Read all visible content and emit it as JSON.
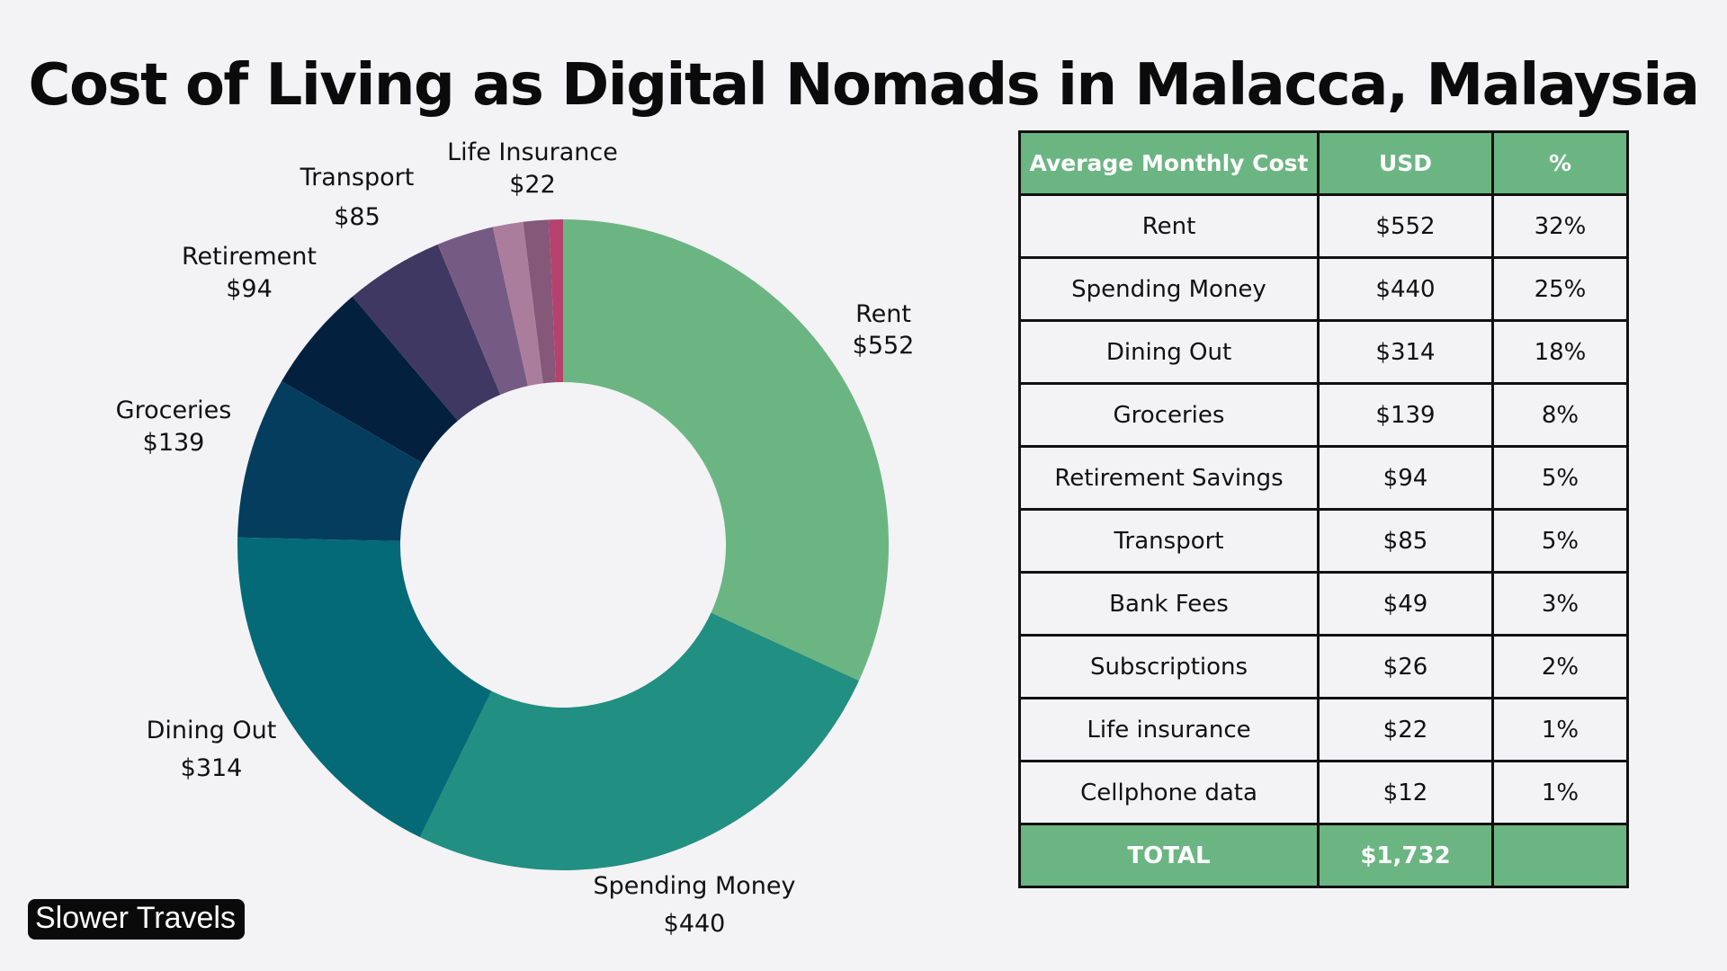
{
  "title": "Cost of Living as Digital Nomads in Malacca, Malaysia",
  "brand": "Slower Travels",
  "chart_data": {
    "type": "pie",
    "donut": true,
    "categories": [
      "Rent",
      "Spending Money",
      "Dining Out",
      "Groceries",
      "Retirement",
      "Transport",
      "Bank Fees",
      "Subscriptions",
      "Life Insurance",
      "Cellphone data"
    ],
    "values": [
      552,
      440,
      314,
      139,
      94,
      85,
      49,
      26,
      22,
      12
    ],
    "value_labels": [
      "$552",
      "$440",
      "$314",
      "$139",
      "$94",
      "$85",
      "",
      "",
      "$22",
      ""
    ],
    "colors": [
      "#6bb582",
      "#218f81",
      "#046a78",
      "#053d5e",
      "#03203f",
      "#3f3862",
      "#755b83",
      "#ab7d9c",
      "#855779",
      "#b5426c"
    ]
  },
  "table": {
    "headers": [
      "Average Monthly Cost",
      "USD",
      "%"
    ],
    "rows": [
      [
        "Rent",
        "$552",
        "32%"
      ],
      [
        "Spending Money",
        "$440",
        "25%"
      ],
      [
        "Dining Out",
        "$314",
        "18%"
      ],
      [
        "Groceries",
        "$139",
        "8%"
      ],
      [
        "Retirement Savings",
        "$94",
        "5%"
      ],
      [
        "Transport",
        "$85",
        "5%"
      ],
      [
        "Bank Fees",
        "$49",
        "3%"
      ],
      [
        "Subscriptions",
        "$26",
        "2%"
      ],
      [
        "Life insurance",
        "$22",
        "1%"
      ],
      [
        "Cellphone data",
        "$12",
        "1%"
      ]
    ],
    "total": [
      "TOTAL",
      "$1,732",
      ""
    ]
  }
}
